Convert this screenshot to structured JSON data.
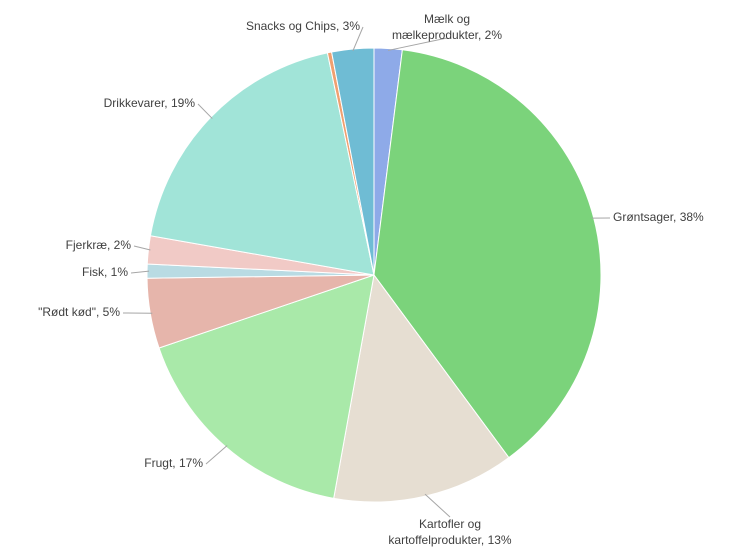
{
  "chart_data": {
    "type": "pie",
    "categories": [
      [
        "Mælk og",
        "mælkeprodukter, 2%"
      ],
      [
        "Grøntsager, 38%"
      ],
      [
        "Kartofler og",
        "kartoffelprodukter, 13%"
      ],
      [
        "Frugt, 17%"
      ],
      [
        "\"Rødt kød\", 5%"
      ],
      [
        "Fisk, 1%"
      ],
      [
        "Fjerkræ, 2%"
      ],
      [
        "Drikkevarer, 19%"
      ],
      null,
      [
        "Snacks og Chips, 3%"
      ]
    ],
    "values": [
      2,
      38,
      13,
      17,
      5,
      1,
      2,
      19,
      0.3,
      3
    ],
    "colors": [
      "#8eaae8",
      "#7bd37b",
      "#e6ded2",
      "#a9e9a9",
      "#e6b5ab",
      "#b9dbe3",
      "#f1cac6",
      "#a1e4d8",
      "#f0a070",
      "#6fbcd4"
    ]
  }
}
